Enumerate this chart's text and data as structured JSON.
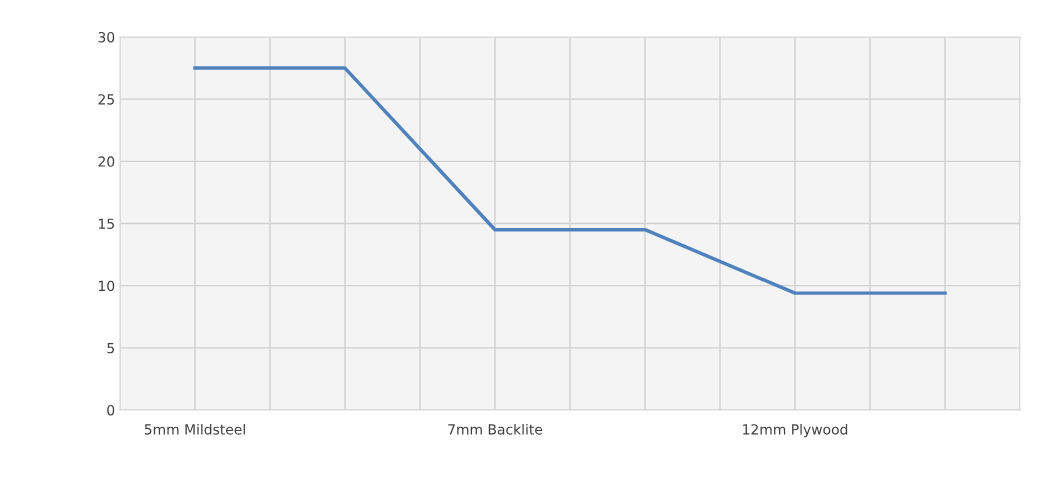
{
  "chart_data": {
    "type": "line",
    "categories": [
      "5mm Mildsteel",
      null,
      "7mm Backlite",
      null,
      "12mm Plywood",
      null
    ],
    "series": [
      {
        "color": "#4f81bd",
        "values": [
          27.5,
          27.5,
          14.5,
          14.5,
          9.4,
          9.4
        ]
      }
    ],
    "ylim": [
      0,
      30
    ],
    "yticks": [
      0,
      5,
      10,
      15,
      20,
      25,
      30
    ],
    "grid": true,
    "marker": "none",
    "line_style": "solid"
  }
}
